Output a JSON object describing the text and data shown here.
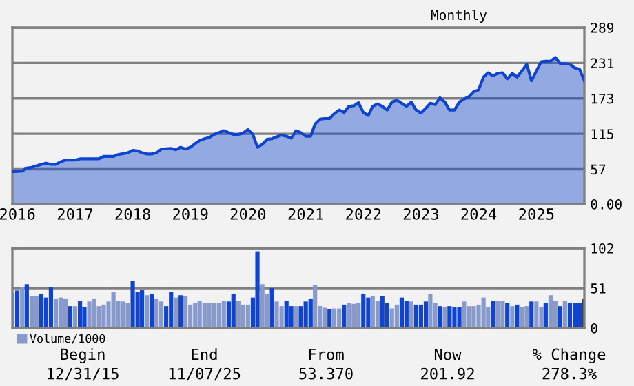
{
  "chart_data": [
    {
      "type": "area",
      "title": "Monthly",
      "x": [
        "2015-12",
        "2016-02",
        "2016-03",
        "2016-04",
        "2016-06",
        "2016-07",
        "2016-08",
        "2016-09",
        "2016-10",
        "2016-11",
        "2017-01",
        "2017-02",
        "2017-04",
        "2017-05",
        "2017-06",
        "2017-07",
        "2017-09",
        "2017-10",
        "2017-12",
        "2018-01",
        "2018-02",
        "2018-03",
        "2018-04",
        "2018-05",
        "2018-06",
        "2018-07",
        "2018-09",
        "2018-10",
        "2018-11",
        "2018-12",
        "2019-01",
        "2019-02",
        "2019-03",
        "2019-04",
        "2019-05",
        "2019-06",
        "2019-07",
        "2019-08",
        "2019-09",
        "2019-10",
        "2019-11",
        "2019-12",
        "2020-01",
        "2020-02",
        "2020-03",
        "2020-04",
        "2020-05",
        "2020-06",
        "2020-07",
        "2020-08",
        "2020-09",
        "2020-10",
        "2020-11",
        "2020-12",
        "2021-01",
        "2021-02",
        "2021-03",
        "2021-04",
        "2021-05",
        "2021-06",
        "2021-07",
        "2021-08",
        "2021-09",
        "2021-10",
        "2021-11",
        "2021-12",
        "2022-01",
        "2022-02",
        "2022-03",
        "2022-04",
        "2022-05",
        "2022-06",
        "2022-07",
        "2022-08",
        "2022-09",
        "2022-10",
        "2022-11",
        "2022-12",
        "2023-01",
        "2023-02",
        "2023-03",
        "2023-04",
        "2023-05",
        "2023-06",
        "2023-07",
        "2023-08",
        "2023-09",
        "2023-10",
        "2023-11",
        "2023-12",
        "2024-01",
        "2024-02",
        "2024-03",
        "2024-04",
        "2024-05",
        "2024-06",
        "2024-07",
        "2024-08",
        "2024-09",
        "2024-10",
        "2024-11",
        "2024-12",
        "2025-01",
        "2025-02",
        "2025-03",
        "2025-04",
        "2025-05",
        "2025-06",
        "2025-07",
        "2025-08",
        "2025-09",
        "2025-10",
        "2025-11"
      ],
      "series": [
        {
          "color": "#1144cc",
          "values": [
            53,
            54,
            59,
            60,
            65,
            67,
            65,
            65,
            69,
            72,
            72,
            74,
            74,
            74,
            74,
            78,
            78,
            81,
            84,
            88,
            87,
            84,
            82,
            82,
            84,
            90,
            91,
            89,
            93,
            90,
            93,
            99,
            104,
            107,
            109,
            114,
            117,
            120,
            117,
            114,
            114,
            116,
            122,
            114,
            93,
            98,
            106,
            107,
            110,
            113,
            111,
            108,
            120,
            117,
            111,
            111,
            131,
            139,
            140,
            140,
            148,
            154,
            150,
            160,
            161,
            166,
            150,
            145,
            160,
            164,
            160,
            154,
            167,
            170,
            165,
            160,
            167,
            154,
            149,
            157,
            165,
            163,
            174,
            167,
            154,
            154,
            167,
            172,
            176,
            184,
            187,
            208,
            215,
            210,
            214,
            215,
            205,
            214,
            208,
            218,
            229,
            202,
            218,
            233,
            234,
            234,
            240,
            230,
            230,
            229,
            223,
            221,
            202
          ]
        }
      ],
      "xlim": [
        "2015-12",
        "2025-11"
      ],
      "xticks": [
        {
          "value": "2016-01",
          "label": "2016"
        },
        {
          "value": "2017-01",
          "label": "2017"
        },
        {
          "value": "2018-01",
          "label": "2018"
        },
        {
          "value": "2019-01",
          "label": "2019"
        },
        {
          "value": "2020-01",
          "label": "2020"
        },
        {
          "value": "2021-01",
          "label": "2021"
        },
        {
          "value": "2022-01",
          "label": "2022"
        },
        {
          "value": "2023-01",
          "label": "2023"
        },
        {
          "value": "2024-01",
          "label": "2024"
        },
        {
          "value": "2025-01",
          "label": "2025"
        }
      ],
      "ylim": [
        0,
        289
      ],
      "yticks": [
        {
          "value": 0,
          "label": "0.00"
        },
        57,
        115,
        173,
        231,
        289
      ],
      "grid": "y"
    },
    {
      "type": "bar",
      "x": [
        "2015-12",
        "2016-01",
        "2016-02",
        "2016-03",
        "2016-04",
        "2016-05",
        "2016-06",
        "2016-07",
        "2016-08",
        "2016-09",
        "2016-10",
        "2016-11",
        "2016-12",
        "2017-01",
        "2017-02",
        "2017-03",
        "2017-04",
        "2017-05",
        "2017-06",
        "2017-07",
        "2017-08",
        "2017-09",
        "2017-10",
        "2017-11",
        "2017-12",
        "2018-01",
        "2018-02",
        "2018-03",
        "2018-04",
        "2018-05",
        "2018-06",
        "2018-07",
        "2018-08",
        "2018-09",
        "2018-10",
        "2018-11",
        "2018-12",
        "2019-01",
        "2019-02",
        "2019-03",
        "2019-04",
        "2019-05",
        "2019-06",
        "2019-07",
        "2019-08",
        "2019-09",
        "2019-10",
        "2019-11",
        "2019-12",
        "2020-01",
        "2020-02",
        "2020-03",
        "2020-04",
        "2020-05",
        "2020-06",
        "2020-07",
        "2020-08",
        "2020-09",
        "2020-10",
        "2020-11",
        "2020-12",
        "2021-01",
        "2021-02",
        "2021-03",
        "2021-04",
        "2021-05",
        "2021-06",
        "2021-07",
        "2021-08",
        "2021-09",
        "2021-10",
        "2021-11",
        "2021-12",
        "2022-01",
        "2022-02",
        "2022-03",
        "2022-04",
        "2022-05",
        "2022-06",
        "2022-07",
        "2022-08",
        "2022-09",
        "2022-10",
        "2022-11",
        "2022-12",
        "2023-01",
        "2023-02",
        "2023-03",
        "2023-04",
        "2023-05",
        "2023-06",
        "2023-07",
        "2023-08",
        "2023-09",
        "2023-10",
        "2023-11",
        "2023-12",
        "2024-01",
        "2024-02",
        "2024-03",
        "2024-04",
        "2024-05",
        "2024-06",
        "2024-07",
        "2024-08",
        "2024-09",
        "2024-10",
        "2024-11",
        "2024-12",
        "2025-01",
        "2025-02",
        "2025-03",
        "2025-04",
        "2025-05",
        "2025-06",
        "2025-07",
        "2025-08",
        "2025-09",
        "2025-10",
        "2025-11"
      ],
      "series": [
        {
          "name": "Volume/1000",
          "color": "#8899cc",
          "values": [
            45,
            48,
            52,
            56,
            41,
            41,
            44,
            39,
            52,
            37,
            39,
            37,
            28,
            28,
            35,
            27,
            34,
            37,
            28,
            30,
            34,
            46,
            35,
            34,
            32,
            60,
            46,
            49,
            42,
            44,
            37,
            34,
            28,
            46,
            39,
            42,
            41,
            30,
            32,
            35,
            32,
            32,
            32,
            32,
            35,
            34,
            44,
            35,
            30,
            30,
            39,
            98,
            56,
            44,
            51,
            34,
            28,
            35,
            28,
            28,
            28,
            34,
            37,
            55,
            28,
            26,
            24,
            25,
            25,
            30,
            32,
            31,
            32,
            44,
            39,
            41,
            35,
            41,
            32,
            25,
            30,
            39,
            35,
            34,
            30,
            30,
            34,
            44,
            32,
            28,
            27,
            28,
            27,
            27,
            34,
            28,
            28,
            30,
            39,
            27,
            35,
            35,
            35,
            32,
            28,
            30,
            27,
            28,
            34,
            34,
            27,
            32,
            42,
            35,
            28,
            35,
            32,
            32,
            32,
            37
          ],
          "colors": [
            "#8899cc",
            "#1144cc",
            "#8899cc",
            "#1144cc",
            "#8899cc",
            "#8899cc",
            "#1144cc",
            "#1144cc",
            "#1144cc",
            "#8899cc",
            "#8899cc",
            "#8899cc",
            "#1144cc",
            "#8899cc",
            "#1144cc",
            "#1144cc",
            "#8899cc",
            "#8899cc",
            "#8899cc",
            "#8899cc",
            "#8899cc",
            "#8899cc",
            "#8899cc",
            "#8899cc",
            "#8899cc",
            "#1144cc",
            "#1144cc",
            "#1144cc",
            "#8899cc",
            "#1144cc",
            "#8899cc",
            "#8899cc",
            "#1144cc",
            "#1144cc",
            "#8899cc",
            "#1144cc",
            "#8899cc",
            "#8899cc",
            "#8899cc",
            "#8899cc",
            "#8899cc",
            "#8899cc",
            "#8899cc",
            "#8899cc",
            "#8899cc",
            "#1144cc",
            "#1144cc",
            "#8899cc",
            "#8899cc",
            "#8899cc",
            "#1144cc",
            "#1144cc",
            "#8899cc",
            "#8899cc",
            "#1144cc",
            "#8899cc",
            "#8899cc",
            "#1144cc",
            "#1144cc",
            "#8899cc",
            "#1144cc",
            "#1144cc",
            "#1144cc",
            "#8899cc",
            "#8899cc",
            "#8899cc",
            "#1144cc",
            "#8899cc",
            "#8899cc",
            "#1144cc",
            "#8899cc",
            "#8899cc",
            "#8899cc",
            "#1144cc",
            "#1144cc",
            "#8899cc",
            "#8899cc",
            "#1144cc",
            "#1144cc",
            "#8899cc",
            "#8899cc",
            "#1144cc",
            "#1144cc",
            "#8899cc",
            "#1144cc",
            "#1144cc",
            "#1144cc",
            "#8899cc",
            "#8899cc",
            "#1144cc",
            "#8899cc",
            "#1144cc",
            "#1144cc",
            "#1144cc",
            "#8899cc",
            "#8899cc",
            "#8899cc",
            "#8899cc",
            "#8899cc",
            "#8899cc",
            "#1144cc",
            "#8899cc",
            "#8899cc",
            "#1144cc",
            "#8899cc",
            "#1144cc",
            "#8899cc",
            "#8899cc",
            "#1144cc",
            "#8899cc",
            "#8899cc",
            "#1144cc",
            "#8899cc",
            "#8899cc",
            "#1144cc",
            "#8899cc",
            "#1144cc",
            "#1144cc",
            "#1144cc",
            "#1144cc"
          ]
        }
      ],
      "xlim": [
        "2015-12",
        "2025-11"
      ],
      "ylim": [
        0,
        102
      ],
      "yticks": [
        0,
        51,
        102
      ],
      "grid": "y",
      "legend": "bottom left",
      "tick_labels": "y",
      "annotations": [
        "Begin",
        "12/31/15",
        "End",
        "11/07/25",
        "From",
        "53.370",
        "Now",
        "201.92",
        "% Change",
        "278.3%"
      ]
    }
  ]
}
